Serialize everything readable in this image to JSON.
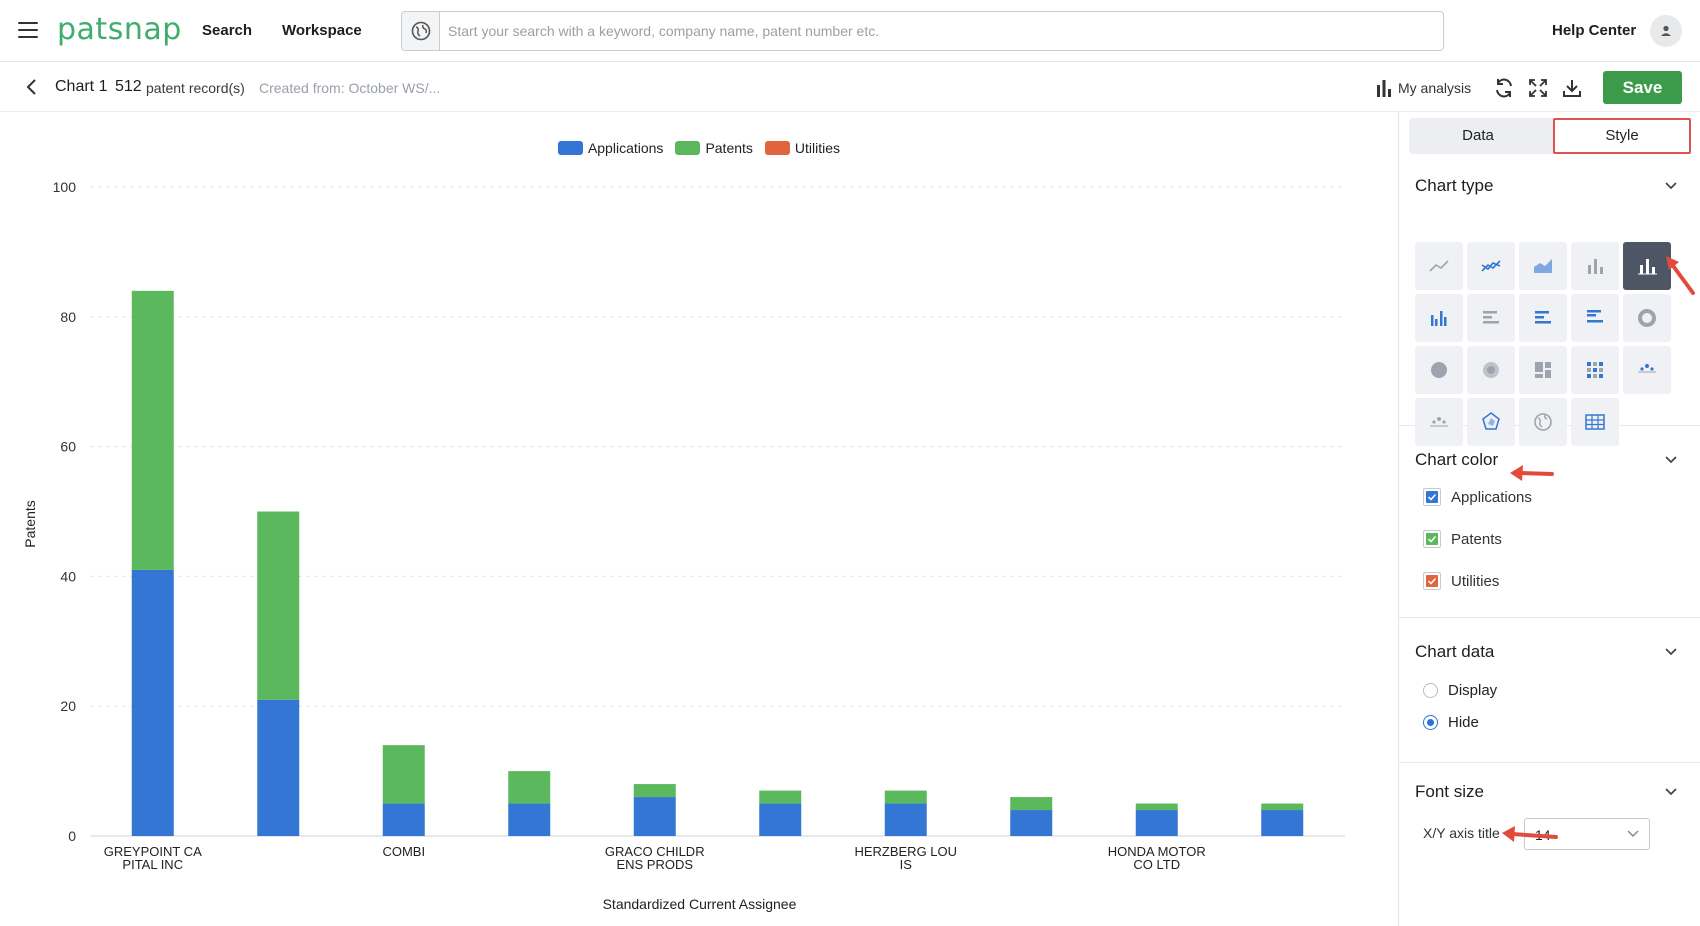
{
  "nav": {
    "logo": "patsnap",
    "search_link": "Search",
    "workspace_link": "Workspace",
    "search_placeholder": "Start your search with a keyword, company name, patent number etc.",
    "help": "Help Center"
  },
  "subheader": {
    "chart_name": "Chart 1",
    "record_count": "512",
    "record_label": "patent record(s)",
    "created_from": "Created from: October WS/...",
    "my_analysis": "My analysis",
    "save": "Save"
  },
  "chart_data": {
    "type": "bar",
    "stacked": true,
    "categories": [
      "GREYPOINT CA PITAL INC",
      "",
      "COMBI",
      "",
      "GRACO CHILDR ENS PRODS",
      "",
      "HERZBERG LOU IS",
      "",
      "HONDA MOTOR CO LTD",
      ""
    ],
    "category_label_lines": [
      [
        "GREYPOINT CA",
        "PITAL INC"
      ],
      [],
      [
        "COMBI"
      ],
      [],
      [
        "GRACO CHILDR",
        "ENS PRODS"
      ],
      [],
      [
        "HERZBERG LOU",
        "IS"
      ],
      [],
      [
        "HONDA MOTOR",
        "CO LTD"
      ],
      []
    ],
    "series": [
      {
        "name": "Applications",
        "color": "#3476d3",
        "values": [
          41,
          21,
          5,
          5,
          6,
          5,
          5,
          4,
          4,
          4
        ]
      },
      {
        "name": "Patents",
        "color": "#5cb85c",
        "values": [
          43,
          29,
          9,
          5,
          2,
          2,
          2,
          2,
          1,
          1
        ]
      },
      {
        "name": "Utilities",
        "color": "#e0643c",
        "values": [
          0,
          0,
          0,
          0,
          0,
          0,
          0,
          0,
          0,
          0
        ]
      }
    ],
    "xlabel": "Standardized Current Assignee",
    "ylabel": "Patents",
    "ylim": [
      0,
      100
    ],
    "yticks": [
      0,
      20,
      40,
      60,
      80,
      100
    ],
    "grid": true,
    "legend": "top-center"
  },
  "panel": {
    "tabs": [
      "Data",
      "Style"
    ],
    "active_tab": "Style",
    "chart_type_title": "Chart type",
    "chart_types": [
      "line",
      "multi-line",
      "area",
      "column",
      "stacked-column",
      "grouped-column",
      "bar",
      "stacked-bar",
      "grouped-bar",
      "donut",
      "pie",
      "rose",
      "treemap",
      "heat-grid",
      "scatter",
      "bubble",
      "radar",
      "world-map",
      "table"
    ],
    "selected_chart_type": "stacked-column",
    "chart_color_title": "Chart color",
    "color_items": [
      {
        "label": "Applications",
        "color": "#3476d3"
      },
      {
        "label": "Patents",
        "color": "#5cb85c"
      },
      {
        "label": "Utilities",
        "color": "#e0643c"
      }
    ],
    "chart_data_title": "Chart data",
    "display_option": "Display",
    "hide_option": "Hide",
    "chart_data_selected": "Hide",
    "font_size_title": "Font size",
    "xy_axis_title_label": "X/Y axis title",
    "xy_axis_title_value": "14"
  }
}
